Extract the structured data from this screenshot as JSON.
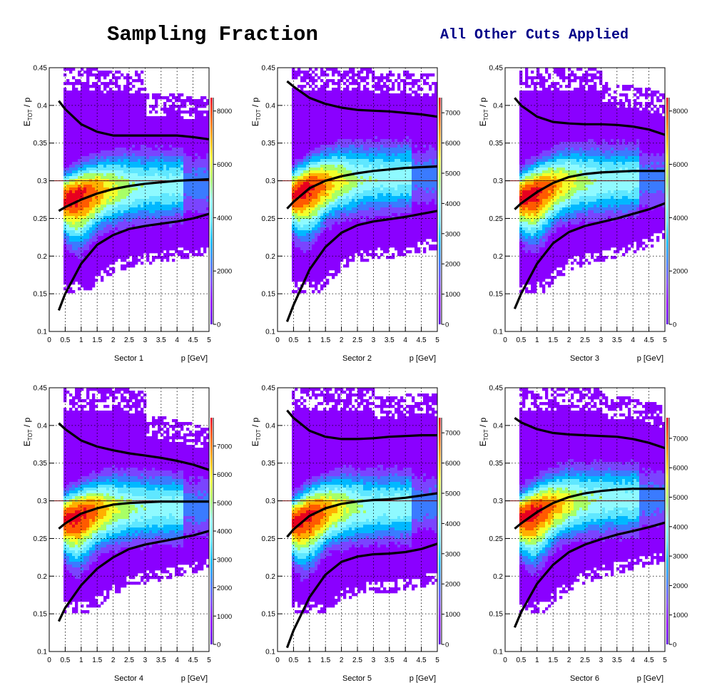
{
  "page": {
    "title": "Sampling Fraction",
    "subtitle": "All Other Cuts Applied"
  },
  "colors": {
    "title": "#000000",
    "subtitle": "#000088",
    "palette": [
      "#5a0fdc",
      "#8a00ff",
      "#7a44ff",
      "#3a7bff",
      "#00b8ff",
      "#5fe7ff",
      "#8ffaff",
      "#a8ff66",
      "#f3ff2a",
      "#ffb000",
      "#ff5a00",
      "#e8001f"
    ]
  },
  "chart_data": [
    {
      "type": "heatmap",
      "sector_label": "Sector 1",
      "xlabel": "p [GeV]",
      "ylabel": "E_TOT / p",
      "xlim": [
        0,
        5
      ],
      "ylim": [
        0.1,
        0.45
      ],
      "xticks": [
        "0",
        "0.5",
        "1",
        "1.5",
        "2",
        "2.5",
        "3",
        "3.5",
        "4",
        "4.5",
        "5"
      ],
      "yticks": [
        "0.1",
        "0.15",
        "0.2",
        "0.25",
        "0.3",
        "0.35",
        "0.4",
        "0.45"
      ],
      "zmax": 8500,
      "zticks": [
        0,
        2000,
        4000,
        6000,
        8000
      ],
      "ridge_y": 0.29,
      "grid": true,
      "reference_line_y": 0.3,
      "curves": {
        "x": [
          0.3,
          0.5,
          1.0,
          1.5,
          2.0,
          2.5,
          3.0,
          3.5,
          4.0,
          4.5,
          5.0
        ],
        "upper": [
          0.406,
          0.395,
          0.375,
          0.365,
          0.36,
          0.36,
          0.36,
          0.36,
          0.36,
          0.358,
          0.355
        ],
        "mean": [
          0.26,
          0.265,
          0.275,
          0.283,
          0.289,
          0.293,
          0.296,
          0.298,
          0.3,
          0.301,
          0.302
        ],
        "lower": [
          0.128,
          0.15,
          0.19,
          0.215,
          0.228,
          0.236,
          0.24,
          0.243,
          0.246,
          0.25,
          0.256
        ]
      }
    },
    {
      "type": "heatmap",
      "sector_label": "Sector 2",
      "xlabel": "p [GeV]",
      "ylabel": "E_TOT / p",
      "xlim": [
        0,
        5
      ],
      "ylim": [
        0.1,
        0.45
      ],
      "xticks": [
        "0",
        "0.5",
        "1",
        "1.5",
        "2",
        "2.5",
        "3",
        "3.5",
        "4",
        "4.5",
        "5"
      ],
      "yticks": [
        "0.1",
        "0.15",
        "0.2",
        "0.25",
        "0.3",
        "0.35",
        "0.4",
        "0.45"
      ],
      "zmax": 7500,
      "zticks": [
        0,
        1000,
        2000,
        3000,
        4000,
        5000,
        6000,
        7000
      ],
      "ridge_y": 0.295,
      "grid": true,
      "reference_line_y": 0.3,
      "curves": {
        "x": [
          0.3,
          0.5,
          1.0,
          1.5,
          2.0,
          2.5,
          3.0,
          3.5,
          4.0,
          4.5,
          5.0
        ],
        "upper": [
          0.432,
          0.425,
          0.41,
          0.402,
          0.397,
          0.394,
          0.393,
          0.392,
          0.39,
          0.388,
          0.385
        ],
        "mean": [
          0.263,
          0.272,
          0.29,
          0.3,
          0.306,
          0.31,
          0.313,
          0.315,
          0.317,
          0.318,
          0.319
        ],
        "lower": [
          0.113,
          0.135,
          0.182,
          0.212,
          0.231,
          0.241,
          0.246,
          0.249,
          0.252,
          0.256,
          0.26
        ]
      }
    },
    {
      "type": "heatmap",
      "sector_label": "Sector 3",
      "xlabel": "p [GeV]",
      "ylabel": "E_TOT / p",
      "xlim": [
        0,
        5
      ],
      "ylim": [
        0.1,
        0.45
      ],
      "xticks": [
        "0",
        "0.5",
        "1",
        "1.5",
        "2",
        "2.5",
        "3",
        "3.5",
        "4",
        "4.5",
        "5"
      ],
      "yticks": [
        "0.1",
        "0.15",
        "0.2",
        "0.25",
        "0.3",
        "0.35",
        "0.4",
        "0.45"
      ],
      "zmax": 8500,
      "zticks": [
        0,
        2000,
        4000,
        6000,
        8000
      ],
      "ridge_y": 0.29,
      "grid": true,
      "reference_line_y": 0.3,
      "curves": {
        "x": [
          0.3,
          0.5,
          1.0,
          1.5,
          2.0,
          2.5,
          3.0,
          3.5,
          4.0,
          4.5,
          5.0
        ],
        "upper": [
          0.41,
          0.4,
          0.385,
          0.378,
          0.376,
          0.375,
          0.375,
          0.374,
          0.372,
          0.368,
          0.361
        ],
        "mean": [
          0.262,
          0.27,
          0.285,
          0.297,
          0.305,
          0.309,
          0.311,
          0.312,
          0.313,
          0.313,
          0.313
        ],
        "lower": [
          0.13,
          0.15,
          0.19,
          0.217,
          0.232,
          0.24,
          0.245,
          0.25,
          0.256,
          0.262,
          0.27
        ]
      }
    },
    {
      "type": "heatmap",
      "sector_label": "Sector 4",
      "xlabel": "p [GeV]",
      "ylabel": "E_TOT / p",
      "xlim": [
        0,
        5
      ],
      "ylim": [
        0.1,
        0.45
      ],
      "xticks": [
        "0",
        "0.5",
        "1",
        "1.5",
        "2",
        "2.5",
        "3",
        "3.5",
        "4",
        "4.5",
        "5"
      ],
      "yticks": [
        "0.1",
        "0.15",
        "0.2",
        "0.25",
        "0.3",
        "0.35",
        "0.4",
        "0.45"
      ],
      "zmax": 8000,
      "zticks": [
        0,
        1000,
        2000,
        3000,
        4000,
        5000,
        6000,
        7000
      ],
      "ridge_y": 0.285,
      "grid": true,
      "reference_line_y": 0.3,
      "curves": {
        "x": [
          0.3,
          0.5,
          1.0,
          1.5,
          2.0,
          2.5,
          3.0,
          3.5,
          4.0,
          4.5,
          5.0
        ],
        "upper": [
          0.403,
          0.395,
          0.38,
          0.372,
          0.367,
          0.363,
          0.36,
          0.357,
          0.353,
          0.348,
          0.341
        ],
        "mean": [
          0.263,
          0.27,
          0.283,
          0.29,
          0.295,
          0.297,
          0.298,
          0.299,
          0.299,
          0.299,
          0.299
        ],
        "lower": [
          0.14,
          0.158,
          0.188,
          0.21,
          0.225,
          0.236,
          0.242,
          0.246,
          0.25,
          0.254,
          0.26
        ]
      }
    },
    {
      "type": "heatmap",
      "sector_label": "Sector 5",
      "xlabel": "p [GeV]",
      "ylabel": "E_TOT / p",
      "xlim": [
        0,
        5
      ],
      "ylim": [
        0.1,
        0.45
      ],
      "xticks": [
        "0",
        "0.5",
        "1",
        "1.5",
        "2",
        "2.5",
        "3",
        "3.5",
        "4",
        "4.5",
        "5"
      ],
      "yticks": [
        "0.1",
        "0.15",
        "0.2",
        "0.25",
        "0.3",
        "0.35",
        "0.4",
        "0.45"
      ],
      "zmax": 7500,
      "zticks": [
        0,
        1000,
        2000,
        3000,
        4000,
        5000,
        6000,
        7000
      ],
      "ridge_y": 0.285,
      "grid": true,
      "reference_line_y": 0.3,
      "curves": {
        "x": [
          0.3,
          0.5,
          1.0,
          1.5,
          2.0,
          2.5,
          3.0,
          3.5,
          4.0,
          4.5,
          5.0
        ],
        "upper": [
          0.42,
          0.41,
          0.393,
          0.385,
          0.382,
          0.382,
          0.383,
          0.385,
          0.386,
          0.387,
          0.387
        ],
        "mean": [
          0.252,
          0.262,
          0.28,
          0.29,
          0.296,
          0.299,
          0.301,
          0.302,
          0.304,
          0.307,
          0.31
        ],
        "lower": [
          0.105,
          0.128,
          0.172,
          0.202,
          0.219,
          0.226,
          0.229,
          0.23,
          0.232,
          0.236,
          0.243
        ]
      }
    },
    {
      "type": "heatmap",
      "sector_label": "Sector 6",
      "xlabel": "p [GeV]",
      "ylabel": "E_TOT / p",
      "xlim": [
        0,
        5
      ],
      "ylim": [
        0.1,
        0.45
      ],
      "xticks": [
        "0",
        "0.5",
        "1",
        "1.5",
        "2",
        "2.5",
        "3",
        "3.5",
        "4",
        "4.5",
        "5"
      ],
      "yticks": [
        "0.1",
        "0.15",
        "0.2",
        "0.25",
        "0.3",
        "0.35",
        "0.4",
        "0.45"
      ],
      "zmax": 7700,
      "zticks": [
        0,
        1000,
        2000,
        3000,
        4000,
        5000,
        6000,
        7000
      ],
      "ridge_y": 0.29,
      "grid": true,
      "reference_line_y": 0.3,
      "curves": {
        "x": [
          0.3,
          0.5,
          1.0,
          1.5,
          2.0,
          2.5,
          3.0,
          3.5,
          4.0,
          4.5,
          5.0
        ],
        "upper": [
          0.41,
          0.404,
          0.395,
          0.39,
          0.388,
          0.387,
          0.386,
          0.385,
          0.382,
          0.377,
          0.37
        ],
        "mean": [
          0.263,
          0.27,
          0.285,
          0.297,
          0.305,
          0.31,
          0.313,
          0.315,
          0.316,
          0.316,
          0.316
        ],
        "lower": [
          0.132,
          0.152,
          0.19,
          0.215,
          0.232,
          0.242,
          0.249,
          0.255,
          0.26,
          0.265,
          0.271
        ]
      }
    }
  ]
}
